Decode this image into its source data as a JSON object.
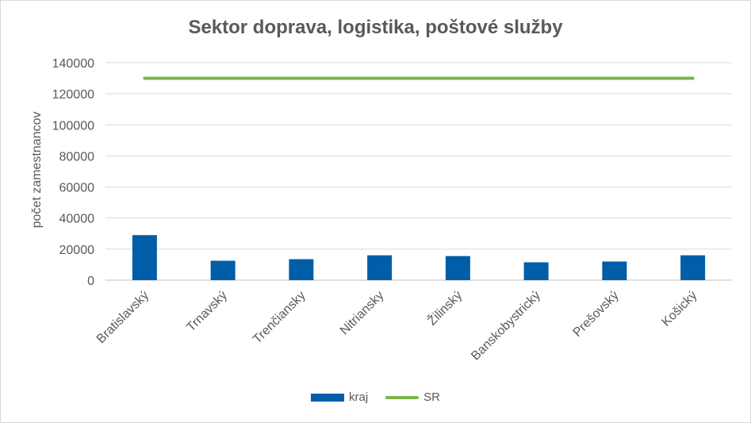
{
  "chart_data": {
    "type": "bar",
    "title": "Sektor doprava, logistika, poštové služby",
    "xlabel": "",
    "ylabel": "počet zamestnancov",
    "ylim": [
      0,
      140000
    ],
    "yticks": [
      0,
      20000,
      40000,
      60000,
      80000,
      100000,
      120000,
      140000
    ],
    "grid": true,
    "legend_position": "bottom",
    "categories": [
      "Bratislavský",
      "Trnavský",
      "Trenčiansky",
      "Nitriansky",
      "Žilinský",
      "Banskobystrický",
      "Prešovský",
      "Košický"
    ],
    "series": [
      {
        "name": "kraj",
        "type": "bar",
        "color": "#005ea8",
        "values": [
          29000,
          12500,
          13500,
          16000,
          15500,
          11500,
          12000,
          16000
        ]
      },
      {
        "name": "SR",
        "type": "line",
        "color": "#7ab648",
        "values": [
          130000,
          130000,
          130000,
          130000,
          130000,
          130000,
          130000,
          130000
        ]
      }
    ]
  }
}
